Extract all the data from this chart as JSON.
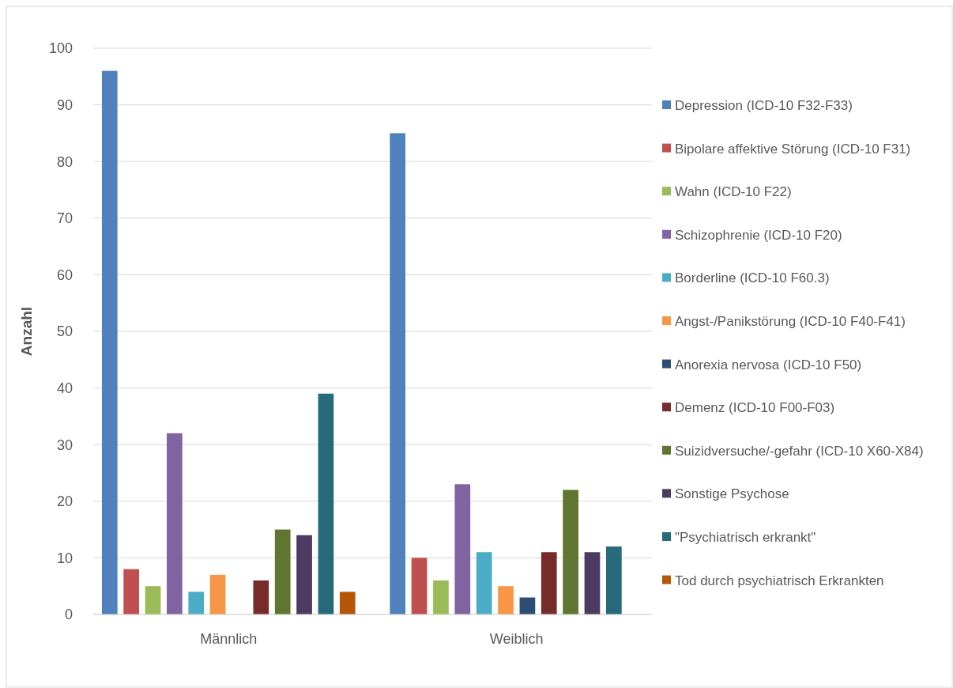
{
  "chart_data": {
    "type": "bar",
    "ylabel": "Anzahl",
    "categories": [
      "Männlich",
      "Weiblich"
    ],
    "ylim": [
      0,
      100
    ],
    "yticks": [
      0,
      10,
      20,
      30,
      40,
      50,
      60,
      70,
      80,
      90,
      100
    ],
    "grid": "y",
    "legend": "right",
    "series": [
      {
        "name": "Depression (ICD-10 F32-F33)",
        "color": "#4f81bd",
        "values": [
          96,
          85
        ]
      },
      {
        "name": "Bipolare affektive Störung (ICD-10 F31)",
        "color": "#c0504d",
        "values": [
          8,
          10
        ]
      },
      {
        "name": "Wahn (ICD-10 F22)",
        "color": "#9bbb59",
        "values": [
          5,
          6
        ]
      },
      {
        "name": "Schizophrenie (ICD-10 F20)",
        "color": "#8064a2",
        "values": [
          32,
          23
        ]
      },
      {
        "name": "Borderline (ICD-10 F60.3)",
        "color": "#4bacc6",
        "values": [
          4,
          11
        ]
      },
      {
        "name": "Angst-/Panikstörung (ICD-10 F40-F41)",
        "color": "#f79646",
        "values": [
          7,
          5
        ]
      },
      {
        "name": "Anorexia nervosa (ICD-10 F50)",
        "color": "#2c4d75",
        "values": [
          null,
          3
        ]
      },
      {
        "name": "Demenz (ICD-10 F00-F03)",
        "color": "#772c2a",
        "values": [
          6,
          11
        ]
      },
      {
        "name": "Suizidversuche/-gefahr (ICD-10 X60-X84)",
        "color": "#5f7530",
        "values": [
          15,
          22
        ]
      },
      {
        "name": "Sonstige Psychose",
        "color": "#4d3b62",
        "values": [
          14,
          11
        ]
      },
      {
        "name": "\"Psychiatrisch erkrankt\"",
        "color": "#276a7c",
        "values": [
          39,
          12
        ]
      },
      {
        "name": "Tod durch psychiatrisch Erkrankten",
        "color": "#b65708",
        "values": [
          4,
          null
        ]
      }
    ]
  }
}
